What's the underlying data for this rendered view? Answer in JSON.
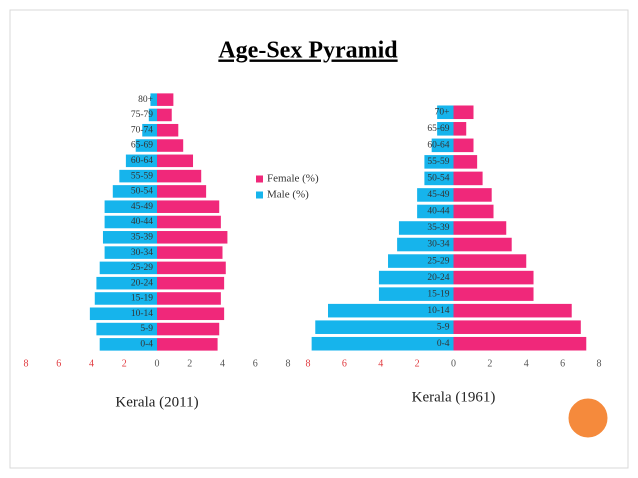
{
  "title": "Age-Sex Pyramid",
  "chart_data": [
    {
      "type": "pyramid",
      "title": "Kerala (2011)",
      "categories": [
        "0-4",
        "5-9",
        "10-14",
        "15-19",
        "20-24",
        "25-29",
        "30-34",
        "35-39",
        "40-44",
        "45-49",
        "50-54",
        "55-59",
        "60-64",
        "65-69",
        "70-74",
        "75-79",
        "80+"
      ],
      "series": [
        {
          "name": "Female (%)",
          "color": "#f0287a",
          "values": [
            3.7,
            3.8,
            4.1,
            3.9,
            4.1,
            4.2,
            4.0,
            4.3,
            3.9,
            3.8,
            3.0,
            2.7,
            2.2,
            1.6,
            1.3,
            0.9,
            1.0
          ]
        },
        {
          "name": "Male (%)",
          "color": "#16b4ec",
          "values": [
            -3.5,
            -3.7,
            -4.1,
            -3.8,
            -3.7,
            -3.5,
            -3.2,
            -3.3,
            -3.2,
            -3.2,
            -2.7,
            -2.3,
            -1.9,
            -1.3,
            -0.9,
            -0.5,
            -0.4
          ]
        }
      ],
      "xlim": [
        -8,
        8
      ],
      "xticks": [
        {
          "value": -8,
          "label": "8"
        },
        {
          "value": -6,
          "label": "6"
        },
        {
          "value": -4,
          "label": "4"
        },
        {
          "value": -2,
          "label": "2"
        },
        0,
        2,
        4,
        6,
        8
      ]
    },
    {
      "type": "pyramid",
      "title": "Kerala (1961)",
      "categories": [
        "0-4",
        "5-9",
        "10-14",
        "15-19",
        "20-24",
        "25-29",
        "30-34",
        "35-39",
        "40-44",
        "45-49",
        "50-54",
        "55-59",
        "60-64",
        "65-69",
        "70+"
      ],
      "series": [
        {
          "color": "#f0287a",
          "values": [
            7.3,
            7.0,
            6.5,
            4.4,
            4.4,
            4.0,
            3.2,
            2.9,
            2.2,
            2.1,
            1.6,
            1.3,
            1.1,
            0.7,
            1.1
          ]
        },
        {
          "color": "#16b4ec",
          "values": [
            -7.8,
            -7.6,
            -6.9,
            -4.1,
            -4.1,
            -3.6,
            -3.1,
            -3.0,
            -2.0,
            -2.0,
            -1.6,
            -1.6,
            -1.2,
            -0.9,
            -0.9
          ]
        }
      ],
      "xlim": [
        -8,
        8
      ],
      "xticks": [
        {
          "value": -8,
          "label": "8"
        },
        {
          "value": -6,
          "label": "6"
        },
        {
          "value": -4,
          "label": "4"
        },
        {
          "value": -2,
          "label": "2"
        },
        0,
        2,
        4,
        6,
        8
      ]
    }
  ]
}
